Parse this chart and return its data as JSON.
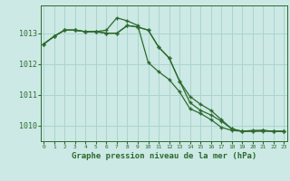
{
  "background_color": "#cce9e5",
  "grid_color": "#aad4cc",
  "line_color": "#2d6a2d",
  "title": "Graphe pression niveau de la mer (hPa)",
  "ylim": [
    1009.5,
    1013.9
  ],
  "yticks": [
    1010,
    1011,
    1012,
    1013
  ],
  "xticks": [
    0,
    1,
    2,
    3,
    4,
    5,
    6,
    7,
    8,
    9,
    10,
    11,
    12,
    13,
    14,
    15,
    16,
    17,
    18,
    19,
    20,
    21,
    22,
    23
  ],
  "series1": [
    1012.65,
    1012.9,
    1013.1,
    1013.1,
    1013.05,
    1013.05,
    1013.1,
    1013.5,
    1013.4,
    1013.25,
    1012.05,
    1011.75,
    1011.5,
    1011.1,
    1010.55,
    1010.4,
    1010.2,
    1009.95,
    1009.85,
    1009.82,
    1009.82,
    1009.85,
    1009.82,
    1009.82
  ],
  "series2": [
    1012.65,
    1012.9,
    1013.1,
    1013.1,
    1013.05,
    1013.05,
    1013.0,
    1013.0,
    1013.25,
    1013.2,
    1013.1,
    1012.55,
    1012.2,
    1011.45,
    1010.75,
    1010.5,
    1010.35,
    1010.15,
    1009.9,
    1009.82,
    1009.82,
    1009.82,
    1009.82,
    1009.82
  ],
  "series3": [
    1012.65,
    1012.9,
    1013.1,
    1013.1,
    1013.05,
    1013.05,
    1013.0,
    1013.0,
    1013.25,
    1013.2,
    1013.1,
    1012.55,
    1012.2,
    1011.45,
    1010.95,
    1010.7,
    1010.5,
    1010.2,
    1009.9,
    1009.82,
    1009.85,
    1009.85,
    1009.82,
    1009.82
  ]
}
